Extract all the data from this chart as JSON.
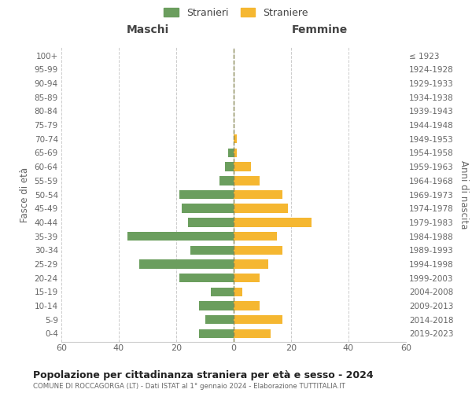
{
  "age_groups": [
    "0-4",
    "5-9",
    "10-14",
    "15-19",
    "20-24",
    "25-29",
    "30-34",
    "35-39",
    "40-44",
    "45-49",
    "50-54",
    "55-59",
    "60-64",
    "65-69",
    "70-74",
    "75-79",
    "80-84",
    "85-89",
    "90-94",
    "95-99",
    "100+"
  ],
  "birth_years": [
    "2019-2023",
    "2014-2018",
    "2009-2013",
    "2004-2008",
    "1999-2003",
    "1994-1998",
    "1989-1993",
    "1984-1988",
    "1979-1983",
    "1974-1978",
    "1969-1973",
    "1964-1968",
    "1959-1963",
    "1954-1958",
    "1949-1953",
    "1944-1948",
    "1939-1943",
    "1934-1938",
    "1929-1933",
    "1924-1928",
    "≤ 1923"
  ],
  "males": [
    12,
    10,
    12,
    8,
    19,
    33,
    15,
    37,
    16,
    18,
    19,
    5,
    3,
    2,
    0,
    0,
    0,
    0,
    0,
    0,
    0
  ],
  "females": [
    13,
    17,
    9,
    3,
    9,
    12,
    17,
    15,
    27,
    19,
    17,
    9,
    6,
    1,
    1,
    0,
    0,
    0,
    0,
    0,
    0
  ],
  "male_color": "#6b9e5e",
  "female_color": "#f5b731",
  "background_color": "#ffffff",
  "grid_color": "#cccccc",
  "title": "Popolazione per cittadinanza straniera per età e sesso - 2024",
  "subtitle": "COMUNE DI ROCCAGORGA (LT) - Dati ISTAT al 1° gennaio 2024 - Elaborazione TUTTITALIA.IT",
  "xlabel_left": "Maschi",
  "xlabel_right": "Femmine",
  "ylabel_left": "Fasce di età",
  "ylabel_right": "Anni di nascita",
  "xlim": 60,
  "legend_stranieri": "Stranieri",
  "legend_straniere": "Straniere"
}
